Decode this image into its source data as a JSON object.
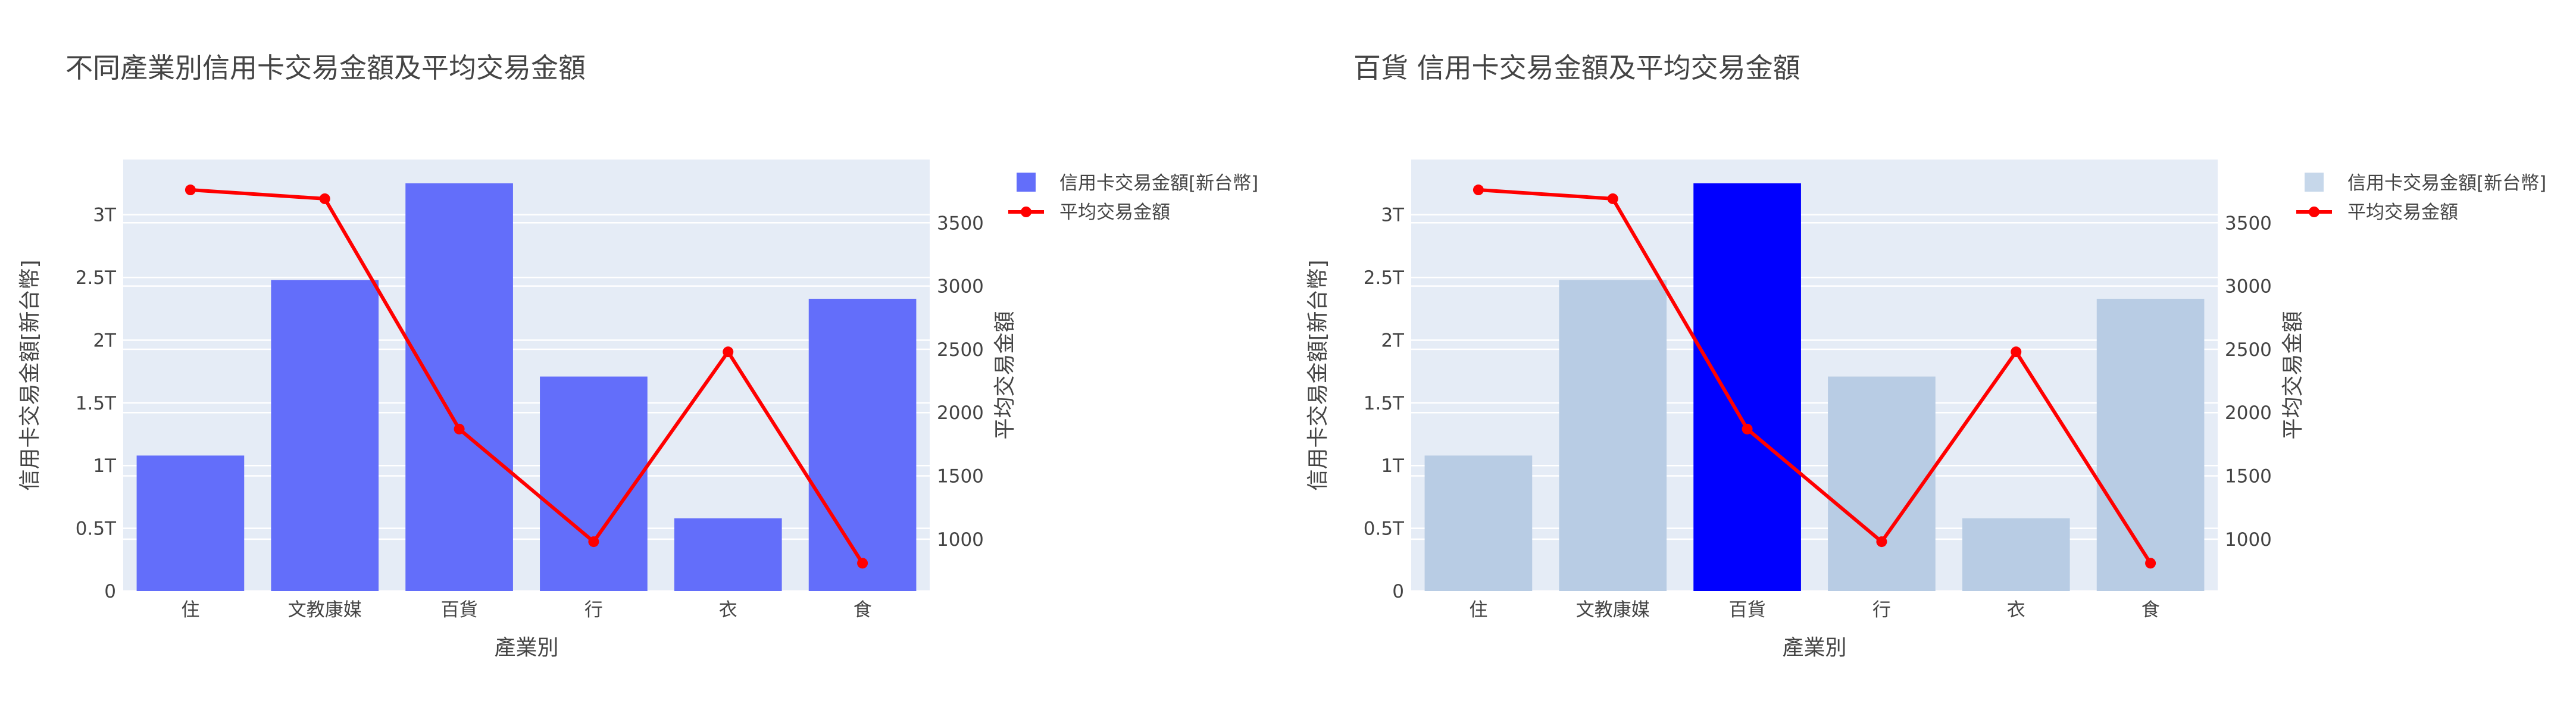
{
  "chart_data": [
    {
      "type": "bar",
      "title": "不同產業別信用卡交易金額及平均交易金額",
      "xlabel": "產業別",
      "ylabel": "信用卡交易金額[新台幣]",
      "y2label": "平均交易金額",
      "categories": [
        "住",
        "文教康媒",
        "百貨",
        "行",
        "衣",
        "食"
      ],
      "ylim": [
        0,
        3.44
      ],
      "yticks": [
        "0",
        "0.5T",
        "1T",
        "1.5T",
        "2T",
        "2.5T",
        "3T"
      ],
      "ytick_values": [
        0,
        0.5,
        1,
        1.5,
        2,
        2.5,
        3
      ],
      "y2lim": [
        590,
        4000
      ],
      "y2ticks": [
        "1000",
        "1500",
        "2000",
        "2500",
        "3000",
        "3500"
      ],
      "y2tick_values": [
        1000,
        1500,
        2000,
        2500,
        3000,
        3500
      ],
      "grid": true,
      "legend_placement": "top-right",
      "series": [
        {
          "name": "信用卡交易金額[新台幣]",
          "type": "bar",
          "axis": "y",
          "values": [
            1.08,
            2.48,
            3.25,
            1.71,
            0.58,
            2.33
          ],
          "colors": [
            "#636efa",
            "#636efa",
            "#636efa",
            "#636efa",
            "#636efa",
            "#636efa"
          ],
          "legend_color": "#636efa"
        },
        {
          "name": "平均交易金額",
          "type": "line",
          "axis": "y2",
          "values": [
            3760,
            3690,
            1870,
            980,
            2480,
            810
          ],
          "color": "#ff0000"
        }
      ]
    },
    {
      "type": "bar",
      "title": "百貨 信用卡交易金額及平均交易金額",
      "xlabel": "產業別",
      "ylabel": "信用卡交易金額[新台幣]",
      "y2label": "平均交易金額",
      "categories": [
        "住",
        "文教康媒",
        "百貨",
        "行",
        "衣",
        "食"
      ],
      "ylim": [
        0,
        3.44
      ],
      "yticks": [
        "0",
        "0.5T",
        "1T",
        "1.5T",
        "2T",
        "2.5T",
        "3T"
      ],
      "ytick_values": [
        0,
        0.5,
        1,
        1.5,
        2,
        2.5,
        3
      ],
      "y2lim": [
        590,
        4000
      ],
      "y2ticks": [
        "1000",
        "1500",
        "2000",
        "2500",
        "3000",
        "3500"
      ],
      "y2tick_values": [
        1000,
        1500,
        2000,
        2500,
        3000,
        3500
      ],
      "grid": true,
      "legend_placement": "top-right",
      "series": [
        {
          "name": "信用卡交易金額[新台幣]",
          "type": "bar",
          "axis": "y",
          "values": [
            1.08,
            2.48,
            3.25,
            1.71,
            0.58,
            2.33
          ],
          "colors": [
            "#b8cce4",
            "#b8cce4",
            "#0000ff",
            "#b8cce4",
            "#b8cce4",
            "#b8cce4"
          ],
          "legend_color": "#c6d7ea"
        },
        {
          "name": "平均交易金額",
          "type": "line",
          "axis": "y2",
          "values": [
            3760,
            3690,
            1870,
            980,
            2480,
            810
          ],
          "color": "#ff0000"
        }
      ]
    }
  ]
}
